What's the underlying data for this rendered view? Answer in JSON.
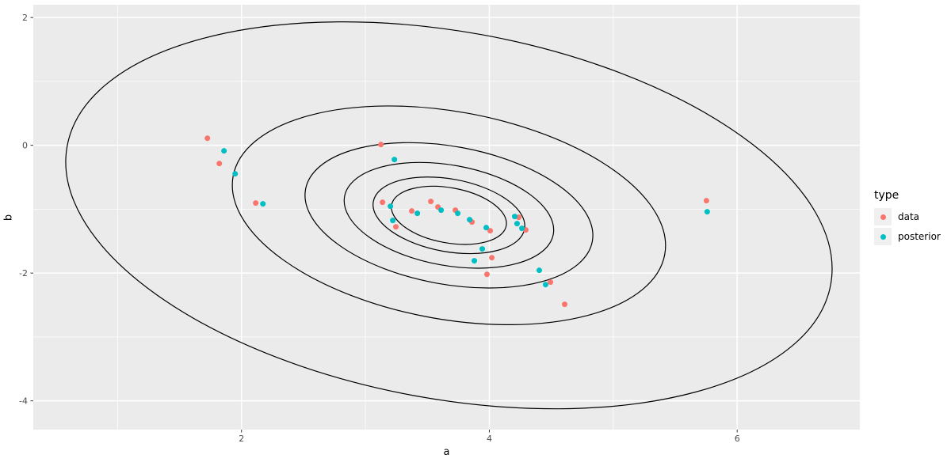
{
  "chart_data": {
    "type": "scatter",
    "description": "ggplot2-style scatter plot of data vs posterior points over concentric bivariate-normal density ellipses",
    "xlabel": "a",
    "ylabel": "b",
    "x_axis": {
      "label": "a",
      "lim": [
        0.32,
        6.99
      ],
      "major_ticks": [
        2,
        4,
        6
      ],
      "minor_ticks": [
        1,
        3,
        5
      ]
    },
    "y_axis": {
      "label": "b",
      "lim": [
        -4.45,
        2.2
      ],
      "major_ticks": [
        2,
        0,
        -2,
        -4
      ],
      "minor_ticks": [
        1,
        -1,
        -3
      ]
    },
    "grid": "on",
    "legend": {
      "title": "type",
      "position": "right",
      "items": [
        "data",
        "posterior"
      ]
    },
    "contours": {
      "shape": "ellipse",
      "center": {
        "a": 3.674,
        "b": -1.096
      },
      "screen_angle_deg": 10.3,
      "pixel_aspect": 0.474,
      "semi_major_a_units": [
        0.47,
        0.62,
        0.856,
        1.176,
        1.77,
        3.131
      ],
      "stroke": "#000000"
    },
    "series": [
      {
        "name": "data",
        "color": "#F8766D",
        "points": [
          [
            1.725,
            0.111
          ],
          [
            1.821,
            -0.285
          ],
          [
            2.115,
            -0.904
          ],
          [
            3.125,
            0.012
          ],
          [
            3.138,
            -0.892
          ],
          [
            3.246,
            -1.276
          ],
          [
            3.374,
            -1.028
          ],
          [
            3.528,
            -0.879
          ],
          [
            3.585,
            -0.966
          ],
          [
            3.726,
            -1.015
          ],
          [
            3.86,
            -1.201
          ],
          [
            4.007,
            -1.337
          ],
          [
            4.02,
            -1.759
          ],
          [
            3.981,
            -2.019
          ],
          [
            4.237,
            -1.127
          ],
          [
            4.294,
            -1.325
          ],
          [
            4.493,
            -2.142
          ],
          [
            4.608,
            -2.489
          ],
          [
            5.752,
            -0.867
          ]
        ]
      },
      {
        "name": "posterior",
        "color": "#00BFC4",
        "points": [
          [
            1.859,
            -0.087
          ],
          [
            1.949,
            -0.446
          ],
          [
            2.173,
            -0.916
          ],
          [
            3.234,
            -0.223
          ],
          [
            3.202,
            -0.954
          ],
          [
            3.221,
            -1.176
          ],
          [
            3.419,
            -1.065
          ],
          [
            3.611,
            -1.015
          ],
          [
            3.745,
            -1.065
          ],
          [
            3.841,
            -1.164
          ],
          [
            3.975,
            -1.288
          ],
          [
            3.943,
            -1.622
          ],
          [
            3.879,
            -1.808
          ],
          [
            4.205,
            -1.114
          ],
          [
            4.224,
            -1.226
          ],
          [
            4.263,
            -1.3
          ],
          [
            4.403,
            -1.957
          ],
          [
            4.454,
            -2.18
          ],
          [
            5.758,
            -1.04
          ]
        ]
      }
    ],
    "colors": {
      "panel_background": "#EBEBEB",
      "gridline": "#FFFFFF",
      "tick_label": "#4D4D4D",
      "tick_mark": "#333333",
      "axis_title": "#000000",
      "legend_key_fill": "#F0F0F0"
    },
    "point_radius_px": 3.5
  }
}
